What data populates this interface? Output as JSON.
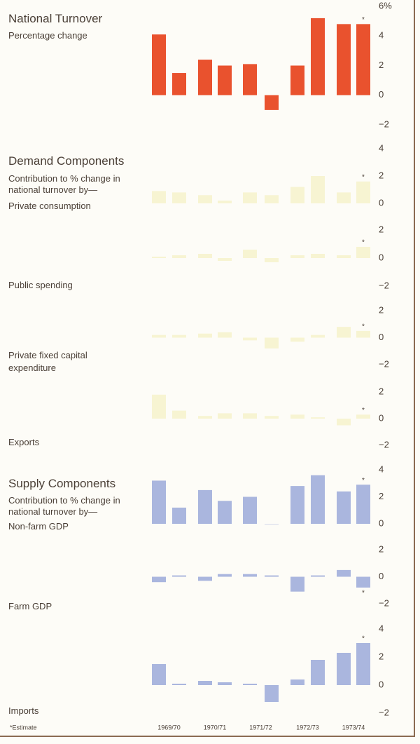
{
  "chart_data": [
    {
      "type": "bar",
      "title": "National Turnover",
      "subtitle": "Percentage change",
      "color": "#e9522e",
      "values": [
        4.1,
        1.5,
        2.4,
        2.0,
        2.1,
        -1.0,
        2.0,
        5.2,
        4.8,
        4.8
      ],
      "annotation": "*",
      "ylim": [
        -2,
        6
      ],
      "yticks": [
        {
          "value": -2,
          "label": "−2"
        },
        0,
        2,
        4,
        {
          "value": 6,
          "label": "6%"
        }
      ]
    },
    {
      "type": "bar",
      "title": "Demand Components",
      "subtitle": "Contribution to % change in national turnover by—",
      "label": "Private consumption",
      "color": "#f7f4d2",
      "values": [
        0.9,
        0.8,
        0.6,
        0.2,
        0.8,
        0.6,
        1.2,
        2.0,
        0.8,
        1.6
      ],
      "annotation": "*",
      "ylim": [
        0,
        4
      ],
      "yticks": [
        0,
        2,
        4
      ]
    },
    {
      "type": "bar",
      "label": "Public spending",
      "color": "#f7f4d2",
      "values": [
        0.1,
        0.2,
        0.3,
        -0.2,
        0.6,
        -0.3,
        0.2,
        0.3,
        0.2,
        0.8
      ],
      "annotation": "*",
      "ylim": [
        -2,
        2
      ],
      "yticks": [
        {
          "value": -2,
          "label": "−2"
        },
        0,
        2
      ]
    },
    {
      "type": "bar",
      "label": "Private fixed capital expenditure",
      "color": "#f7f4d2",
      "values": [
        0.2,
        0.2,
        0.3,
        0.4,
        -0.2,
        -0.8,
        -0.3,
        0.2,
        0.8,
        0.5
      ],
      "annotation": "*",
      "ylim": [
        -2,
        2
      ],
      "yticks": [
        {
          "value": -2,
          "label": "−2"
        },
        0,
        2
      ]
    },
    {
      "type": "bar",
      "label": "Exports",
      "color": "#f7f4d2",
      "values": [
        1.8,
        0.6,
        0.2,
        0.4,
        0.4,
        0.2,
        0.3,
        0.1,
        -0.5,
        0.3
      ],
      "annotation": "*",
      "ylim": [
        -2,
        2
      ],
      "yticks": [
        {
          "value": -2,
          "label": "−2"
        },
        0,
        2
      ]
    },
    {
      "type": "bar",
      "title": "Supply Components",
      "subtitle": "Contribution to % change in national turnover by—",
      "label": "Non-farm GDP",
      "color": "#aab6de",
      "values": [
        3.2,
        1.2,
        2.5,
        1.7,
        2.0,
        0,
        2.8,
        3.6,
        2.4,
        2.9
      ],
      "annotation": "*",
      "ylim": [
        0,
        4
      ],
      "yticks": [
        0,
        2,
        4
      ]
    },
    {
      "type": "bar",
      "label": "Farm GDP",
      "color": "#aab6de",
      "values": [
        -0.4,
        0.1,
        -0.3,
        0.2,
        0.2,
        0.1,
        -1.1,
        0.1,
        0.5,
        -0.8
      ],
      "annotation": "*",
      "ylim": [
        -2,
        2
      ],
      "yticks": [
        {
          "value": -2,
          "label": "−2"
        },
        0,
        2
      ]
    },
    {
      "type": "bar",
      "label": "Imports",
      "color": "#aab6de",
      "categories": [
        "1969/70",
        null,
        "1970/71",
        null,
        "1971/72",
        null,
        "1972/73",
        null,
        "1973/74",
        null
      ],
      "values": [
        1.5,
        0.1,
        0.3,
        0.2,
        0.1,
        -1.2,
        0.4,
        1.8,
        2.3,
        3.0
      ],
      "annotation": "*",
      "ylim": [
        -2,
        4
      ],
      "yticks": [
        {
          "value": -2,
          "label": "−2"
        },
        0,
        2,
        4
      ]
    }
  ],
  "footnote": "*Estimate"
}
